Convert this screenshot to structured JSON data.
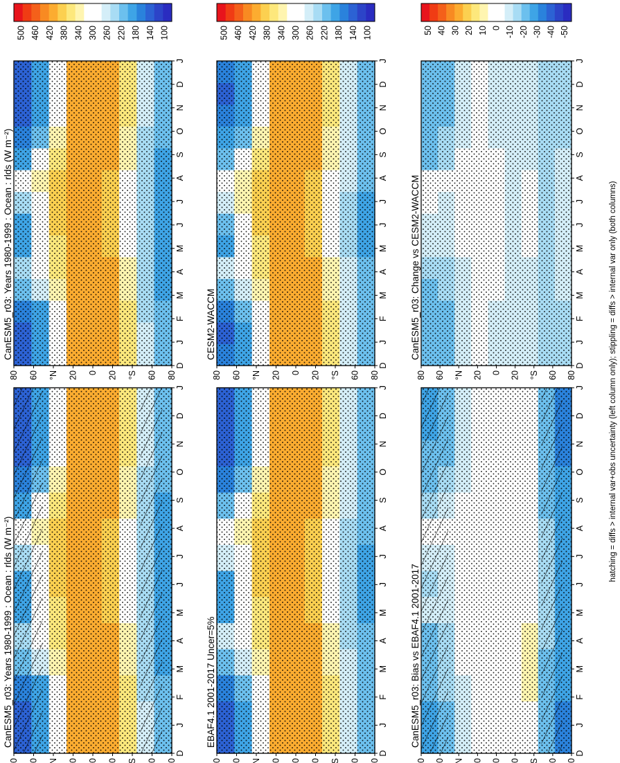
{
  "figure": {
    "footnote": "hatching = diffs > internal var+obs uncertainty (left column only); stippling = diffs > internal var only (both columns)"
  },
  "palettes": {
    "abs": [
      "#e8141c",
      "#f03c14",
      "#f4601a",
      "#f88a22",
      "#fcac30",
      "#fcd050",
      "#fde87c",
      "#fff5b0",
      "#ffffff",
      "#ffffff",
      "#d4eef8",
      "#a8dcf4",
      "#6cc0ee",
      "#3ea4e6",
      "#2a82dc",
      "#2c62d4",
      "#2c44c8",
      "#2a2cc0"
    ],
    "diff": [
      "#e8141c",
      "#f03c14",
      "#f4601a",
      "#f88a22",
      "#fcac30",
      "#fcd050",
      "#fde87c",
      "#fff5b0",
      "#ffffff",
      "#ffffff",
      "#d4eef8",
      "#a8dcf4",
      "#6cc0ee",
      "#3ea4e6",
      "#2a82dc",
      "#2c62d4",
      "#2c44c8",
      "#2a2cc0"
    ]
  },
  "colorbars": {
    "abs": {
      "labels": [
        "500",
        "460",
        "420",
        "380",
        "340",
        "300",
        "260",
        "220",
        "180",
        "140",
        "100"
      ]
    },
    "diff": {
      "labels": [
        "50",
        "40",
        "30",
        "20",
        "10",
        "0",
        "-10",
        "-20",
        "-30",
        "-40",
        "-50"
      ]
    }
  },
  "axes": {
    "months": [
      "D",
      "J",
      "F",
      "M",
      "A",
      "M",
      "J",
      "J",
      "A",
      "S",
      "O",
      "N",
      "D",
      "J"
    ],
    "lat_labels": [
      "80",
      "60",
      "°N",
      "20",
      "0",
      "20",
      "°S",
      "60",
      "80"
    ]
  },
  "chart_data": [
    {
      "type": "heatmap",
      "title": "CanESM5_r03: Years 1980-1999 : Ocean : rlds (W m⁻²)",
      "x": [
        "D",
        "J",
        "F",
        "M",
        "A",
        "M",
        "J",
        "J",
        "A",
        "S",
        "O",
        "N",
        "D",
        "J"
      ],
      "y": [
        "80N",
        "60N",
        "40N",
        "20N",
        "0",
        "20S",
        "40S",
        "60S",
        "80S"
      ],
      "z": [
        [
          160,
          150,
          170,
          220,
          250,
          200,
          200,
          250,
          300,
          210,
          180,
          160,
          150,
          160
        ],
        [
          200,
          190,
          210,
          260,
          300,
          300,
          300,
          320,
          340,
          280,
          220,
          200,
          190,
          200
        ],
        [
          320,
          310,
          320,
          340,
          350,
          360,
          370,
          370,
          370,
          350,
          330,
          320,
          310,
          320
        ],
        [
          390,
          390,
          390,
          390,
          400,
          400,
          410,
          410,
          410,
          400,
          400,
          390,
          390,
          390
        ],
        [
          410,
          410,
          410,
          410,
          410,
          410,
          410,
          410,
          410,
          410,
          410,
          410,
          410,
          410
        ],
        [
          400,
          400,
          400,
          400,
          390,
          380,
          380,
          380,
          380,
          390,
          390,
          400,
          400,
          400
        ],
        [
          350,
          350,
          345,
          340,
          330,
          320,
          320,
          320,
          320,
          330,
          340,
          345,
          350,
          350
        ],
        [
          260,
          260,
          255,
          250,
          245,
          240,
          240,
          240,
          245,
          250,
          255,
          260,
          260,
          260
        ],
        [
          220,
          220,
          215,
          210,
          205,
          200,
          200,
          200,
          205,
          210,
          215,
          220,
          220,
          220
        ]
      ],
      "zlim": [
        100,
        500
      ],
      "colorbar": "abs",
      "overlay": "hatch"
    },
    {
      "type": "heatmap",
      "title": "EBAF4.1 2001-2017 Uncer=5%",
      "x": [
        "D",
        "J",
        "F",
        "M",
        "A",
        "M",
        "J",
        "J",
        "A",
        "S",
        "O",
        "N",
        "D",
        "J"
      ],
      "y": [
        "80N",
        "60N",
        "40N",
        "20N",
        "0",
        "20S",
        "40S",
        "60S",
        "80S"
      ],
      "z": [
        [
          160,
          150,
          170,
          220,
          260,
          210,
          210,
          260,
          300,
          220,
          180,
          160,
          150,
          160
        ],
        [
          210,
          200,
          220,
          270,
          300,
          300,
          310,
          320,
          340,
          290,
          230,
          210,
          200,
          210
        ],
        [
          320,
          310,
          320,
          340,
          350,
          360,
          370,
          370,
          370,
          350,
          330,
          320,
          310,
          320
        ],
        [
          390,
          390,
          390,
          390,
          400,
          400,
          410,
          410,
          410,
          400,
          400,
          390,
          390,
          390
        ],
        [
          410,
          410,
          410,
          410,
          410,
          410,
          410,
          410,
          410,
          410,
          410,
          410,
          410,
          410
        ],
        [
          400,
          400,
          400,
          400,
          390,
          380,
          380,
          380,
          380,
          390,
          390,
          400,
          400,
          400
        ],
        [
          350,
          350,
          345,
          340,
          330,
          320,
          320,
          320,
          320,
          330,
          340,
          345,
          350,
          350
        ],
        [
          270,
          270,
          265,
          260,
          255,
          250,
          250,
          250,
          255,
          260,
          265,
          270,
          270,
          270
        ],
        [
          230,
          230,
          225,
          220,
          215,
          210,
          210,
          210,
          215,
          220,
          225,
          230,
          230,
          230
        ]
      ],
      "zlim": [
        100,
        500
      ],
      "colorbar": "abs",
      "overlay": "stipple"
    },
    {
      "type": "heatmap",
      "title": "CanESM5_r03: Bias vs EBAF4.1 2001-2017",
      "x": [
        "D",
        "J",
        "F",
        "M",
        "A",
        "M",
        "J",
        "J",
        "A",
        "S",
        "O",
        "N",
        "D",
        "J"
      ],
      "y": [
        "80N",
        "60N",
        "40N",
        "20N",
        "0",
        "20S",
        "40S",
        "60S",
        "80S"
      ],
      "z": [
        [
          -25,
          -25,
          -22,
          -20,
          -20,
          -10,
          -12,
          -8,
          5,
          -15,
          -18,
          -22,
          -25,
          -25
        ],
        [
          -18,
          -18,
          -16,
          -15,
          -15,
          -10,
          -10,
          -6,
          -4,
          -10,
          -15,
          -18,
          -18,
          -18
        ],
        [
          -8,
          -8,
          -6,
          -5,
          -5,
          -3,
          -2,
          0,
          0,
          -4,
          -6,
          -8,
          -8,
          -8
        ],
        [
          -2,
          -2,
          -1,
          0,
          2,
          3,
          3,
          2,
          1,
          0,
          -1,
          -2,
          -2,
          -2
        ],
        [
          3,
          3,
          4,
          5,
          5,
          4,
          3,
          2,
          2,
          3,
          3,
          3,
          3,
          3
        ],
        [
          -2,
          -2,
          -2,
          -3,
          -3,
          -2,
          -2,
          -2,
          -2,
          -2,
          -2,
          -2,
          -2,
          -2
        ],
        [
          5,
          5,
          6,
          6,
          6,
          5,
          4,
          4,
          4,
          5,
          5,
          5,
          5,
          5
        ],
        [
          -18,
          -18,
          -18,
          -17,
          -16,
          -15,
          -15,
          -15,
          -16,
          -17,
          -18,
          -18,
          -18,
          -18
        ],
        [
          -28,
          -28,
          -27,
          -26,
          -25,
          -24,
          -24,
          -24,
          -25,
          -26,
          -27,
          -28,
          -28,
          -28
        ]
      ],
      "zlim": [
        -50,
        50
      ],
      "colorbar": "diff",
      "overlay": "hatch"
    },
    {
      "type": "heatmap",
      "title": "CanESM5_r03: Years 1980-1999 : Ocean : rlds (W m⁻²)",
      "x": [
        "D",
        "J",
        "F",
        "M",
        "A",
        "M",
        "J",
        "J",
        "A",
        "S",
        "O",
        "N",
        "D",
        "J"
      ],
      "y": [
        "80N",
        "60N",
        "40N",
        "20N",
        "0",
        "20S",
        "40S",
        "60S",
        "80S"
      ],
      "z": [
        [
          160,
          150,
          170,
          220,
          250,
          200,
          200,
          250,
          300,
          210,
          180,
          160,
          150,
          160
        ],
        [
          200,
          190,
          210,
          260,
          300,
          300,
          300,
          320,
          340,
          280,
          220,
          200,
          190,
          200
        ],
        [
          320,
          310,
          320,
          340,
          350,
          360,
          370,
          370,
          370,
          350,
          330,
          320,
          310,
          320
        ],
        [
          390,
          390,
          390,
          390,
          400,
          400,
          410,
          410,
          410,
          400,
          400,
          390,
          390,
          390
        ],
        [
          410,
          410,
          410,
          410,
          410,
          410,
          410,
          410,
          410,
          410,
          410,
          410,
          410,
          410
        ],
        [
          400,
          400,
          400,
          400,
          390,
          380,
          380,
          380,
          380,
          390,
          390,
          400,
          400,
          400
        ],
        [
          350,
          350,
          345,
          340,
          330,
          320,
          320,
          320,
          320,
          330,
          340,
          345,
          350,
          350
        ],
        [
          260,
          260,
          255,
          250,
          245,
          240,
          240,
          240,
          245,
          250,
          255,
          260,
          260,
          260
        ],
        [
          220,
          220,
          215,
          210,
          205,
          200,
          200,
          200,
          205,
          210,
          215,
          220,
          220,
          220
        ]
      ],
      "zlim": [
        100,
        500
      ],
      "colorbar": "abs",
      "overlay": "stipple"
    },
    {
      "type": "heatmap",
      "title": "CESM2-WACCM",
      "x": [
        "D",
        "J",
        "F",
        "M",
        "A",
        "M",
        "J",
        "J",
        "A",
        "S",
        "O",
        "N",
        "D",
        "J"
      ],
      "y": [
        "80N",
        "60N",
        "40N",
        "20N",
        "0",
        "20S",
        "40S",
        "60S",
        "80S"
      ],
      "z": [
        [
          170,
          160,
          180,
          230,
          260,
          210,
          220,
          260,
          300,
          220,
          190,
          170,
          160,
          170
        ],
        [
          210,
          200,
          220,
          270,
          300,
          300,
          310,
          330,
          340,
          290,
          230,
          210,
          200,
          210
        ],
        [
          320,
          310,
          320,
          340,
          350,
          360,
          370,
          370,
          370,
          350,
          330,
          320,
          310,
          320
        ],
        [
          390,
          390,
          390,
          390,
          400,
          400,
          410,
          410,
          410,
          400,
          400,
          390,
          390,
          390
        ],
        [
          410,
          410,
          410,
          410,
          410,
          410,
          410,
          410,
          410,
          410,
          410,
          410,
          410,
          410
        ],
        [
          400,
          400,
          400,
          400,
          390,
          380,
          380,
          380,
          380,
          390,
          390,
          400,
          400,
          400
        ],
        [
          350,
          350,
          345,
          340,
          330,
          320,
          320,
          320,
          320,
          330,
          340,
          345,
          350,
          350
        ],
        [
          275,
          275,
          270,
          265,
          260,
          255,
          255,
          255,
          260,
          265,
          270,
          275,
          275,
          275
        ],
        [
          230,
          230,
          225,
          220,
          215,
          210,
          210,
          210,
          215,
          220,
          225,
          230,
          230,
          230
        ]
      ],
      "zlim": [
        100,
        500
      ],
      "colorbar": "abs",
      "overlay": "stipple"
    },
    {
      "type": "heatmap",
      "title": "CanESM5_r03: Change vs CESM2-WACCM",
      "x": [
        "D",
        "J",
        "F",
        "M",
        "A",
        "M",
        "J",
        "J",
        "A",
        "S",
        "O",
        "N",
        "D",
        "J"
      ],
      "y": [
        "80N",
        "60N",
        "40N",
        "20N",
        "0",
        "20S",
        "40S",
        "60S",
        "80S"
      ],
      "z": [
        [
          -20,
          -22,
          -20,
          -18,
          -15,
          -10,
          -8,
          -5,
          -2,
          -18,
          -20,
          -22,
          -20,
          -20
        ],
        [
          -18,
          -18,
          -17,
          -16,
          -14,
          -10,
          -9,
          -6,
          -4,
          -12,
          -16,
          -18,
          -18,
          -18
        ],
        [
          -10,
          -10,
          -9,
          -8,
          -6,
          -4,
          -3,
          -2,
          -1,
          -5,
          -8,
          -10,
          -10,
          -10
        ],
        [
          -4,
          -4,
          -3,
          -2,
          -1,
          0,
          0,
          1,
          1,
          0,
          -2,
          -3,
          -4,
          -4
        ],
        [
          -6,
          -6,
          -6,
          -5,
          -5,
          -4,
          -4,
          -4,
          -4,
          -5,
          -6,
          -6,
          -6,
          -6
        ],
        [
          -8,
          -8,
          -8,
          -8,
          -7,
          -7,
          -7,
          -7,
          -7,
          -8,
          -8,
          -8,
          -8,
          -8
        ],
        [
          -6,
          -6,
          -6,
          -6,
          -6,
          -5,
          -5,
          -5,
          -5,
          -6,
          -6,
          -6,
          -6,
          -6
        ],
        [
          -15,
          -15,
          -15,
          -14,
          -14,
          -13,
          -13,
          -13,
          -14,
          -14,
          -15,
          -15,
          -15,
          -15
        ],
        [
          -12,
          -12,
          -12,
          -11,
          -11,
          -10,
          -10,
          -10,
          -11,
          -11,
          -12,
          -12,
          -12,
          -12
        ]
      ],
      "zlim": [
        -50,
        50
      ],
      "colorbar": "diff",
      "overlay": "stipple"
    }
  ]
}
